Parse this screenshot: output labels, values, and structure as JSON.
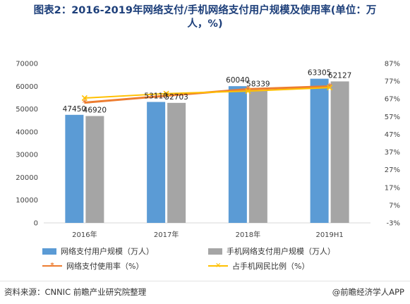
{
  "title_line1": "图表2：2016-2019年网络支付/手机网络支付用户规模及使用率(单位：万",
  "title_line2": "人，%)",
  "footer": {
    "source": "资料来源：CNNIC 前瞻产业研究院整理",
    "brand": "@前瞻经济学人APP"
  },
  "colors": {
    "bar1": "#5b9bd5",
    "bar2": "#a5a5a5",
    "line1": "#ed7d31",
    "line2": "#ffc000"
  },
  "chart_data": {
    "type": "bar",
    "categories": [
      "2016年",
      "2017年",
      "2018年",
      "2019H1"
    ],
    "series": [
      {
        "name": "网络支付用户规模（万人）",
        "kind": "bar",
        "axis": "left",
        "values": [
          47450,
          53110,
          60040,
          63305
        ]
      },
      {
        "name": "手机网络支付用户规模（万人）",
        "kind": "bar",
        "axis": "left",
        "values": [
          46920,
          52703,
          58339,
          62127
        ]
      },
      {
        "name": "网络支付使用率（%）",
        "kind": "line",
        "axis": "right",
        "marker": "star",
        "values": [
          64.9,
          68.8,
          72.5,
          74.1
        ]
      },
      {
        "name": "占手机网民比例（%）",
        "kind": "line",
        "axis": "right",
        "marker": "x",
        "values": [
          67.5,
          70.0,
          71.4,
          73.4
        ]
      }
    ],
    "bar_labels": [
      [
        "47450",
        "53110",
        "60040",
        "63305"
      ],
      [
        "46920",
        "52703",
        "58339",
        "62127"
      ]
    ],
    "y_left": {
      "ticks": [
        "70000",
        "60000",
        "50000",
        "40000",
        "30000",
        "20000",
        "10000",
        "0"
      ],
      "ylim": [
        0,
        70000
      ]
    },
    "y_right": {
      "ticks": [
        "87%",
        "77%",
        "67%",
        "57%",
        "47%",
        "37%",
        "27%",
        "17%",
        "7%",
        "-3%"
      ],
      "ylim": [
        -3,
        87
      ]
    },
    "legend": [
      {
        "label": "网络支付用户规模（万人）",
        "type": "bar",
        "color": "#5b9bd5"
      },
      {
        "label": "手机网络支付用户规模（万人）",
        "type": "bar",
        "color": "#a5a5a5"
      },
      {
        "label": "网络支付使用率（%）",
        "type": "line",
        "color": "#ed7d31",
        "marker": "*"
      },
      {
        "label": "占手机网民比例（%）",
        "type": "line",
        "color": "#ffc000",
        "marker": "×"
      }
    ],
    "legend_position": "bottom",
    "grid": false
  }
}
